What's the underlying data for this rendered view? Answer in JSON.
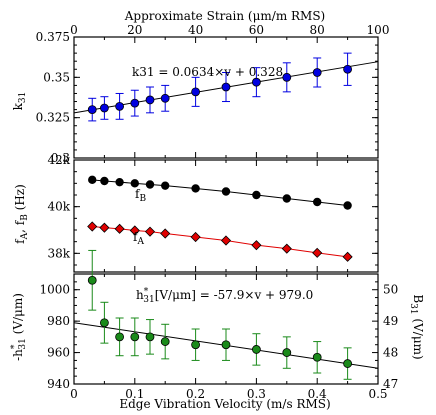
{
  "chart_data": [
    {
      "type": "scatter",
      "panel": "top",
      "x_axis_top": {
        "title": "Approximate Strain (μm/m RMS)",
        "ticks": [
          0,
          20,
          40,
          60,
          80,
          100
        ],
        "range": [
          0,
          100
        ]
      },
      "ylabel": "k31",
      "ylim": [
        0.3,
        0.375
      ],
      "yticks": [
        0.3,
        0.325,
        0.35,
        0.375
      ],
      "ytick_labels": [
        "0.3",
        "0.325",
        "0.35",
        "0.375"
      ],
      "annotation": "k31 = 0.0634×v + 0.328",
      "fit": {
        "slope": 0.0634,
        "intercept": 0.328
      },
      "color": "#0000e0",
      "series": [
        {
          "x": [
            0.03,
            0.05,
            0.075,
            0.1,
            0.125,
            0.15,
            0.2,
            0.25,
            0.3,
            0.35,
            0.4,
            0.45
          ],
          "y": [
            0.33,
            0.331,
            0.332,
            0.334,
            0.336,
            0.337,
            0.341,
            0.344,
            0.347,
            0.35,
            0.353,
            0.355
          ],
          "err": [
            0.007,
            0.007,
            0.008,
            0.008,
            0.008,
            0.008,
            0.009,
            0.009,
            0.009,
            0.009,
            0.009,
            0.01
          ]
        }
      ]
    },
    {
      "type": "scatter",
      "panel": "middle",
      "ylabel": "fA, fB (Hz)",
      "ylim": [
        37200,
        42000
      ],
      "yticks": [
        38000,
        40000,
        42000
      ],
      "ytick_labels": [
        "38k",
        "40k",
        "42k"
      ],
      "series": [
        {
          "name": "fB",
          "color": "#000000",
          "marker": "circle",
          "x": [
            0.03,
            0.05,
            0.075,
            0.1,
            0.125,
            0.15,
            0.2,
            0.25,
            0.3,
            0.35,
            0.4,
            0.45
          ],
          "y": [
            41150,
            41100,
            41050,
            41000,
            40950,
            40900,
            40780,
            40650,
            40500,
            40350,
            40200,
            40050
          ]
        },
        {
          "name": "fA",
          "color": "#e00000",
          "marker": "diamond",
          "x": [
            0.03,
            0.05,
            0.075,
            0.1,
            0.125,
            0.15,
            0.2,
            0.25,
            0.3,
            0.35,
            0.4,
            0.45
          ],
          "y": [
            39150,
            39100,
            39050,
            38980,
            38930,
            38850,
            38700,
            38550,
            38350,
            38200,
            38020,
            37850
          ]
        }
      ]
    },
    {
      "type": "scatter",
      "panel": "bottom",
      "xlabel": "Edge Vibration Velocity (m/s RMS)",
      "xticks": [
        0,
        0.1,
        0.2,
        0.3,
        0.4,
        0.5
      ],
      "xtick_labels": [
        "0",
        "0.1",
        "0.2",
        "0.3",
        "0.4",
        "0.5"
      ],
      "xlim": [
        0,
        0.5
      ],
      "ylabel": "-h31* (V/μm)",
      "ylim": [
        940,
        1010
      ],
      "yticks": [
        940,
        960,
        980,
        1000
      ],
      "ylabel_right": "B31 (V/μm)",
      "y2lim": [
        47,
        50.5
      ],
      "y2ticks": [
        47,
        48,
        49,
        50
      ],
      "annotation": "h31*[V/μm] = -57.9×v + 979.0",
      "fit": {
        "slope": -57.9,
        "intercept": 979.0
      },
      "color": "#1a8a1a",
      "series": [
        {
          "x": [
            0.03,
            0.05,
            0.075,
            0.1,
            0.125,
            0.15,
            0.2,
            0.25,
            0.3,
            0.35,
            0.4,
            0.45
          ],
          "y": [
            1006,
            979,
            970,
            970,
            970,
            967,
            965,
            965,
            962,
            960,
            957,
            953
          ],
          "err": [
            19,
            13,
            12,
            12,
            11,
            11,
            10,
            10,
            10,
            10,
            10,
            10
          ]
        }
      ]
    }
  ]
}
